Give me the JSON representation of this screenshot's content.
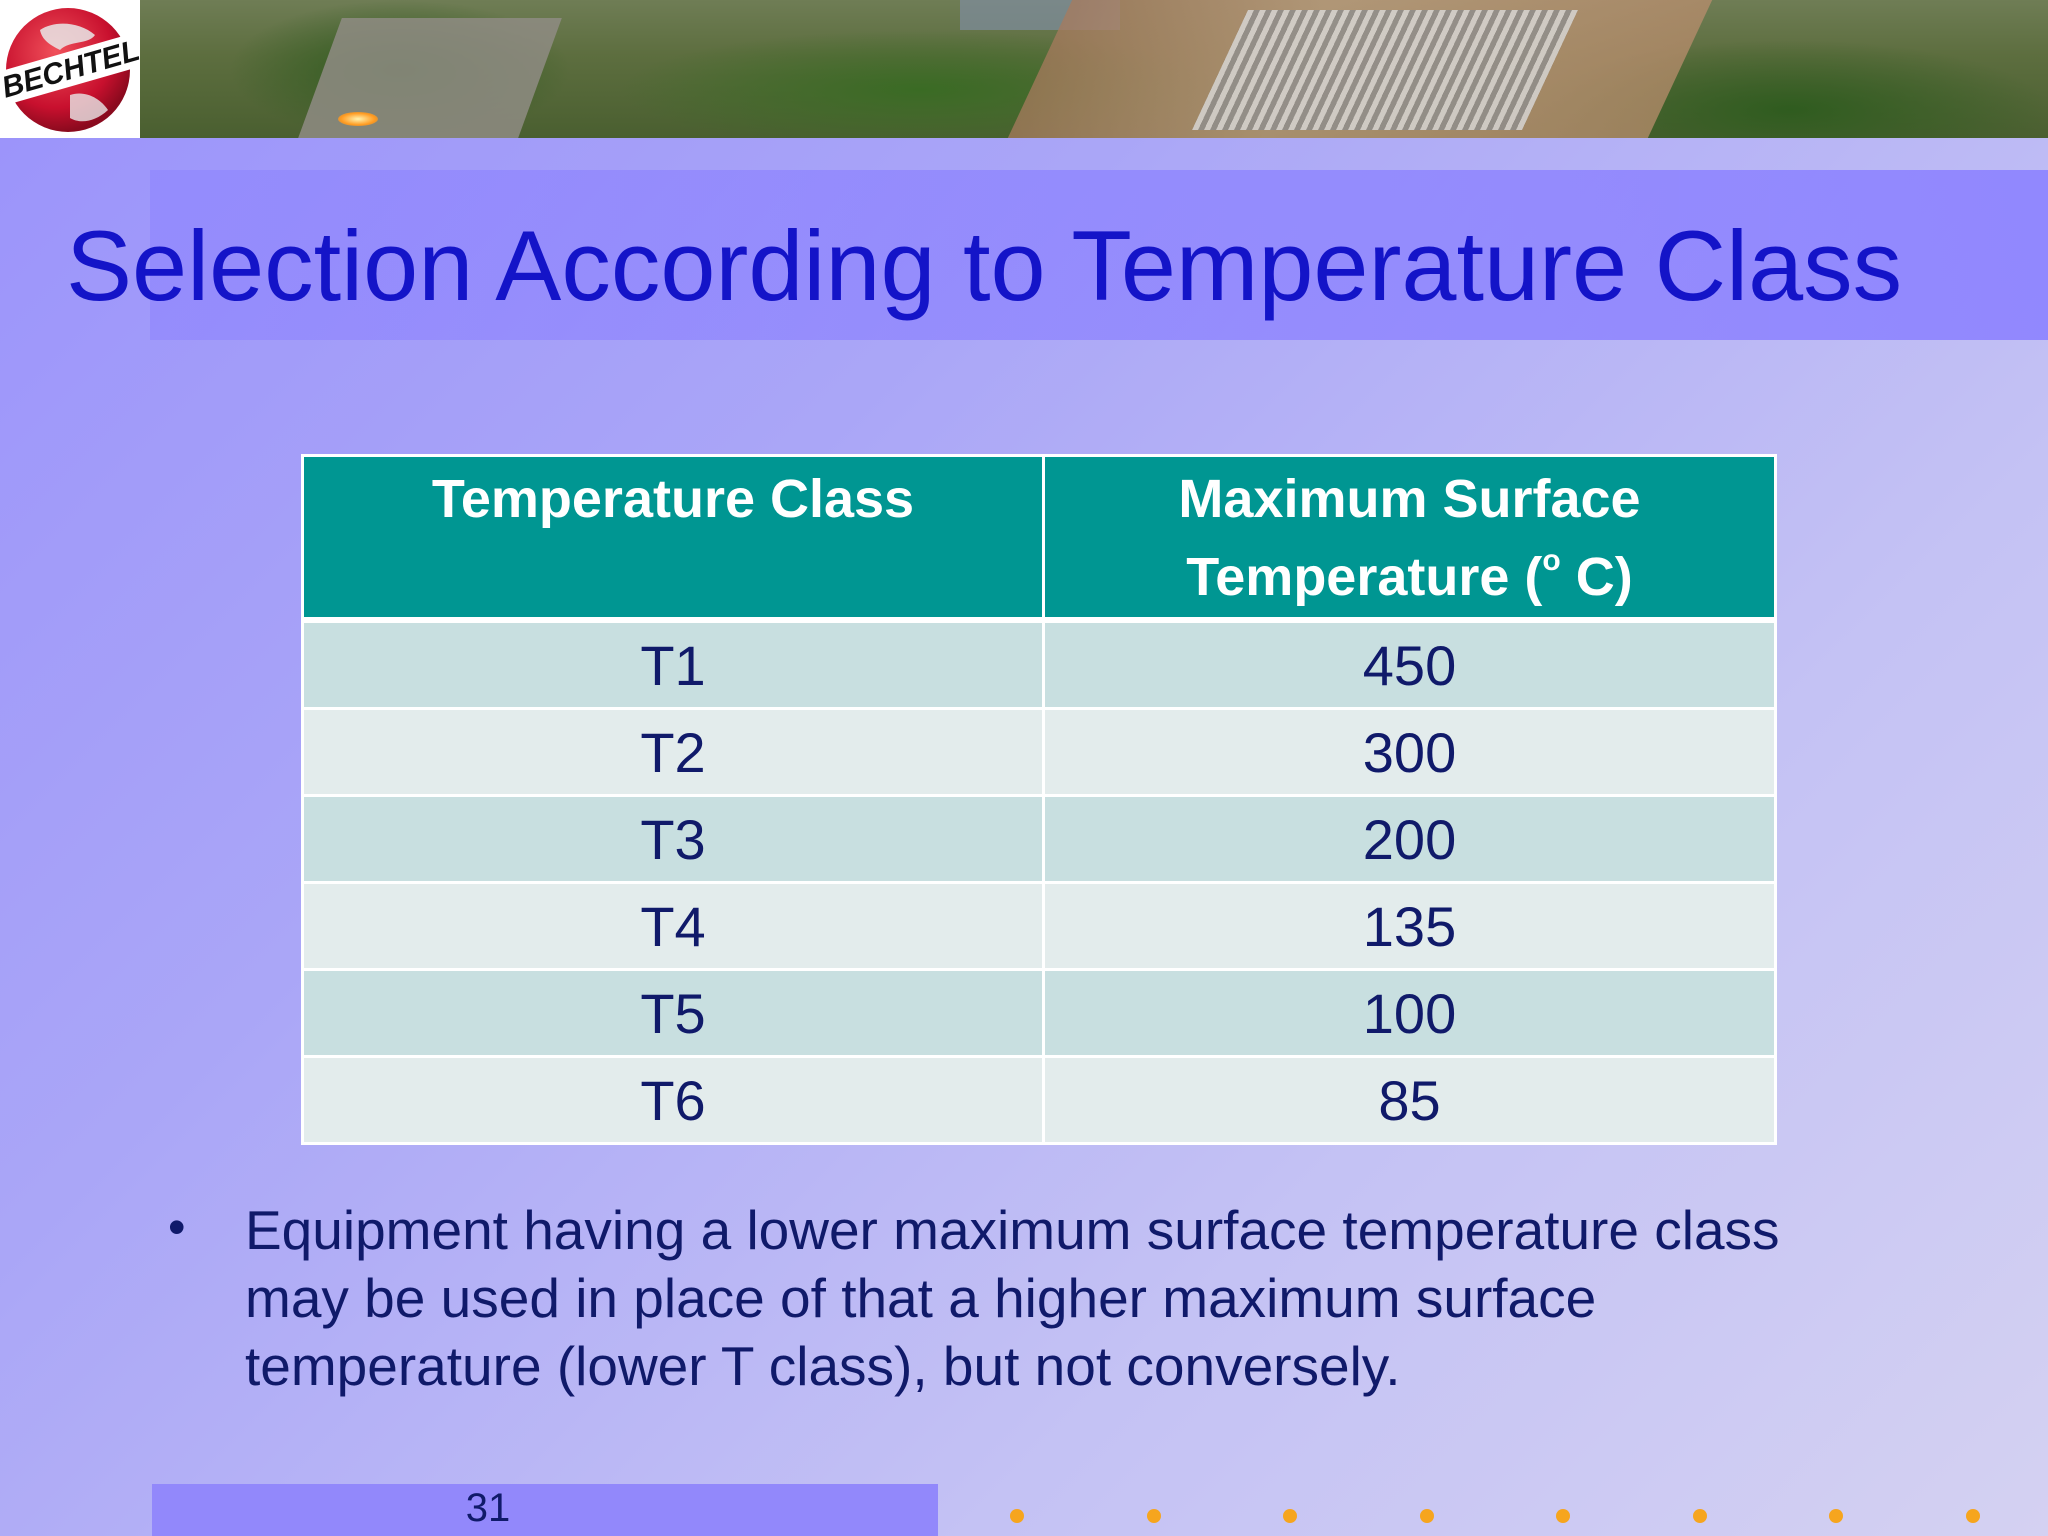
{
  "logo": {
    "text": "BECHTEL"
  },
  "title": "Selection According to Temperature Class",
  "table": {
    "headers": {
      "col1": "Temperature Class",
      "col2_line1": "Maximum Surface",
      "col2_line2": "Temperature (",
      "col2_degree": "o",
      "col2_tail": " C)"
    },
    "rows": [
      {
        "class": "T1",
        "temp": "450"
      },
      {
        "class": "T2",
        "temp": "300"
      },
      {
        "class": "T3",
        "temp": "200"
      },
      {
        "class": "T4",
        "temp": "135"
      },
      {
        "class": "T5",
        "temp": "100"
      },
      {
        "class": "T6",
        "temp": "85"
      }
    ]
  },
  "bullet": {
    "symbol": "•",
    "text": "Equipment having a lower maximum surface temperature class may be used in place of that a higher maximum surface temperature (lower T class), but not conversely."
  },
  "footer": {
    "page_number": "31"
  },
  "colors": {
    "title": "#1414c8",
    "table_header": "#009692",
    "row_odd": "#c8dfe0",
    "row_even": "#e3ecec",
    "accent_dots": "#f6a51e"
  }
}
